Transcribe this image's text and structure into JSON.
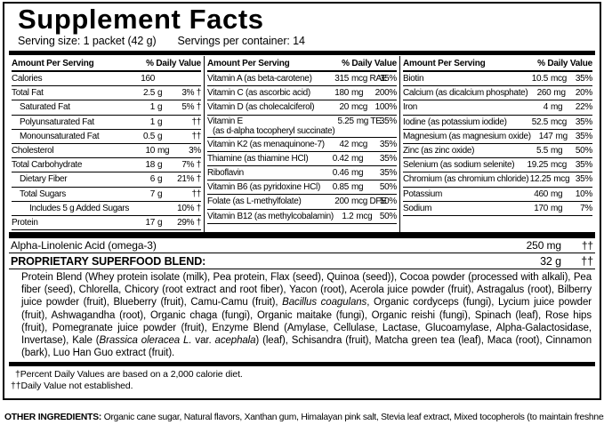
{
  "title": "Supplement Facts",
  "serving": {
    "size": "Serving size: 1 packet (42 g)",
    "per_container": "Servings per container: 14"
  },
  "columns": [
    {
      "header_left": "Amount Per Serving",
      "header_right": "% Daily Value",
      "rows": [
        {
          "label": "Calories",
          "num": "160",
          "unit": "",
          "dv": "",
          "indent": 0
        },
        {
          "label": "Total Fat",
          "num": "2.5",
          "unit": "g",
          "dv": "3% †",
          "indent": 0
        },
        {
          "label": "Saturated Fat",
          "num": "1",
          "unit": "g",
          "dv": "5% †",
          "indent": 1
        },
        {
          "label": "Polyunsaturated Fat",
          "num": "1",
          "unit": "g",
          "dv": "††",
          "indent": 1
        },
        {
          "label": "Monounsaturated Fat",
          "num": "0.5",
          "unit": "g",
          "dv": "††",
          "indent": 1
        },
        {
          "label": "Cholesterol",
          "num": "10",
          "unit": "mg",
          "dv": "3%",
          "indent": 0
        },
        {
          "label": "Total Carbohydrate",
          "num": "18",
          "unit": "g",
          "dv": "7% †",
          "indent": 0
        },
        {
          "label": "Dietary Fiber",
          "num": "6",
          "unit": "g",
          "dv": "21% †",
          "indent": 1
        },
        {
          "label": "Total Sugars",
          "num": "7",
          "unit": "g",
          "dv": "††",
          "indent": 1
        },
        {
          "label": "Includes 5 g Added Sugars",
          "num": "",
          "unit": "",
          "dv": "10% †",
          "indent": 2
        },
        {
          "label": "Protein",
          "num": "17",
          "unit": "g",
          "dv": "29% †",
          "indent": 0
        }
      ]
    },
    {
      "header_left": "Amount Per Serving",
      "header_right": "% Daily Value",
      "rows": [
        {
          "label": "Vitamin A (as beta-carotene)",
          "num": "315",
          "unit": "mcg RAE",
          "dv": "35%",
          "indent": 0
        },
        {
          "label": "Vitamin C (as ascorbic acid)",
          "num": "180",
          "unit": "mg",
          "dv": "200%",
          "indent": 0
        },
        {
          "label": "Vitamin D (as cholecalciferol)",
          "num": "20",
          "unit": "mcg",
          "dv": "100%",
          "indent": 0
        },
        {
          "label": "Vitamin E",
          "label2": "(as d-alpha tocopheryl succinate)",
          "num": "5.25",
          "unit": "mg TE",
          "dv": "35%",
          "indent": 0
        },
        {
          "label": "Vitamin K2 (as menaquinone-7)",
          "num": "42",
          "unit": "mcg",
          "dv": "35%",
          "indent": 0
        },
        {
          "label": "Thiamine (as thiamine HCl)",
          "num": "0.42",
          "unit": "mg",
          "dv": "35%",
          "indent": 0
        },
        {
          "label": "Riboflavin",
          "num": "0.46",
          "unit": "mg",
          "dv": "35%",
          "indent": 0
        },
        {
          "label": "Vitamin B6 (as pyridoxine HCl)",
          "num": "0.85",
          "unit": "mg",
          "dv": "50%",
          "indent": 0
        },
        {
          "label": "Folate (as L-methylfolate)",
          "num": "200",
          "unit": "mcg DFE",
          "dv": "50%",
          "indent": 0
        },
        {
          "label": "Vitamin B12 (as methylcobalamin)",
          "num": "1.2",
          "unit": "mcg",
          "dv": "50%",
          "indent": 0
        }
      ]
    },
    {
      "header_left": "Amount Per Serving",
      "header_right": "% Daily Value",
      "rows": [
        {
          "label": "Biotin",
          "num": "10.5",
          "unit": "mcg",
          "dv": "35%",
          "indent": 0
        },
        {
          "label": "Calcium (as dicalcium phosphate)",
          "num": "260",
          "unit": "mg",
          "dv": "20%",
          "indent": 0
        },
        {
          "label": "Iron",
          "num": "4",
          "unit": "mg",
          "dv": "22%",
          "indent": 0
        },
        {
          "label": "Iodine (as potassium iodide)",
          "num": "52.5",
          "unit": "mcg",
          "dv": "35%",
          "indent": 0
        },
        {
          "label": "Magnesium (as magnesium oxide)",
          "num": "147",
          "unit": "mg",
          "dv": "35%",
          "indent": 0
        },
        {
          "label": "Zinc (as zinc oxide)",
          "num": "5.5",
          "unit": "mg",
          "dv": "50%",
          "indent": 0
        },
        {
          "label": "Selenium (as sodium selenite)",
          "num": "19.25",
          "unit": "mcg",
          "dv": "35%",
          "indent": 0
        },
        {
          "label": "Chromium (as chromium chloride)",
          "num": "12.25",
          "unit": "mcg",
          "dv": "35%",
          "indent": 0
        },
        {
          "label": "Potassium",
          "num": "460",
          "unit": "mg",
          "dv": "10%",
          "indent": 0
        },
        {
          "label": "Sodium",
          "num": "170",
          "unit": "mg",
          "dv": "7%",
          "indent": 0
        }
      ]
    }
  ],
  "omega": {
    "label": "Alpha-Linolenic Acid (omega-3)",
    "amount": "250 mg",
    "dv": "††"
  },
  "blend": {
    "heading": "PROPRIETARY SUPERFOOD BLEND:",
    "amount": "32 g",
    "dv": "††",
    "segments": [
      {
        "text": "Protein Blend (Whey protein isolate (milk), Pea protein, Flax (seed), Quinoa (seed)), Cocoa powder (processed with alkali), Pea fiber (seed), Chlorella, Chicory (root extract and root fiber), Yacon (root), Acerola juice powder (fruit), Astragalus (root), Bilberry juice powder (fruit), Blueberry (fruit), Camu-Camu (fruit), ",
        "italic": false
      },
      {
        "text": "Bacillus coagulans",
        "italic": true
      },
      {
        "text": ", Organic cordyceps (fungi), Lycium juice powder (fruit), Ashwagandha (root), Organic chaga (fungi), Organic maitake (fungi), Organic reishi (fungi), Spinach (leaf), Rose hips (fruit), Pomegranate juice powder (fruit), Enzyme Blend (Amylase, Cellulase, Lactase, Glucoamylase, Alpha-Galactosidase, Invertase), Kale (",
        "italic": false
      },
      {
        "text": "Brassica oleracea L.",
        "italic": true
      },
      {
        "text": " var. ",
        "italic": false
      },
      {
        "text": "acephala",
        "italic": true
      },
      {
        "text": ") (leaf), Schisandra (fruit), Matcha green tea (leaf), Maca (root), Cinnamon (bark), Luo Han Guo extract (fruit).",
        "italic": false
      }
    ]
  },
  "footnotes": [
    "†Percent Daily Values are based on a 2,000 calorie diet.",
    "††Daily Value not established."
  ],
  "other": {
    "label": "OTHER INGREDIENTS:",
    "text": " Organic cane sugar, Natural flavors, Xanthan gum, Himalayan pink salt, Stevia leaf extract, Mixed tocopherols (to maintain freshness)."
  },
  "colors": {
    "ink": "#000000",
    "paper": "#ffffff"
  }
}
